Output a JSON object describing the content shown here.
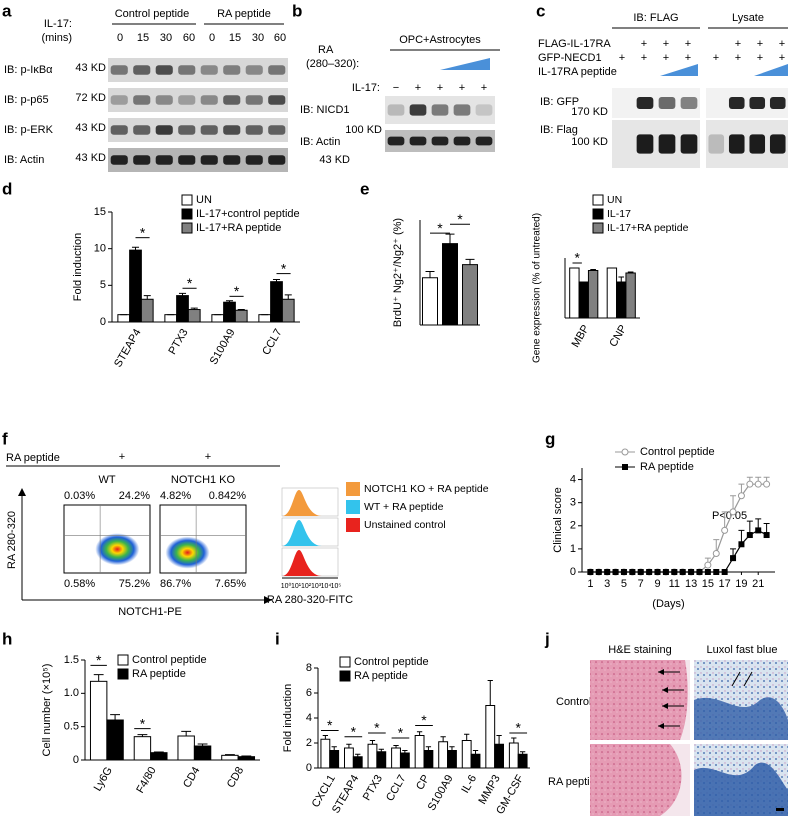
{
  "panel_a": {
    "label": "a",
    "il17": "IL-17:",
    "mins": "(mins)",
    "groups": [
      "Control peptide",
      "RA peptide"
    ],
    "times": [
      "0",
      "15",
      "30",
      "60",
      "0",
      "15",
      "30",
      "60"
    ],
    "rows": [
      {
        "name": "IB: p-IκBα",
        "size": "43 KD"
      },
      {
        "name": "IB: p-p65",
        "size": "72 KD"
      },
      {
        "name": "IB: p-ERK",
        "size": "43 KD"
      },
      {
        "name": "IB: Actin",
        "size": "43 KD"
      }
    ]
  },
  "panel_b": {
    "label": "b",
    "ra": "RA",
    "ra_range": "(280–320):",
    "group": "OPC+Astrocytes",
    "il17": "IL-17:",
    "il17_signs": [
      "−",
      "+",
      "+",
      "+",
      "+"
    ],
    "rows": [
      {
        "name": "IB: NICD1",
        "size": "100 KD"
      },
      {
        "name": "IB: Actin",
        "size": "43 KD"
      }
    ]
  },
  "panel_c": {
    "label": "c",
    "ip": "IB: FLAG",
    "lysate": "Lysate",
    "conditions": [
      {
        "name": "FLAG-IL-17RA",
        "left": [
          "+",
          "+",
          "+"
        ],
        "right": [
          "+",
          "+",
          "+"
        ]
      },
      {
        "name": "GFP-NECD1",
        "left": [
          "+",
          "+",
          "+",
          "+"
        ],
        "right": [
          "+",
          "+",
          "+",
          "+"
        ]
      },
      {
        "name": "IL-17RA peptide"
      }
    ],
    "rows": [
      {
        "name": "IB: GFP",
        "size": "170 KD"
      },
      {
        "name": "IB: Flag",
        "size": "100 KD"
      }
    ]
  },
  "panel_d": {
    "label": "d",
    "chart_data": {
      "type": "bar",
      "y_label": "Fold induction",
      "categories": [
        "STEAP4",
        "PTX3",
        "S100A9",
        "CCL7"
      ],
      "series": [
        {
          "name": "UN",
          "color": "#ffffff",
          "values": [
            1,
            1,
            1,
            1
          ],
          "errors": [
            0,
            0,
            0,
            0
          ]
        },
        {
          "name": "IL-17+control peptide",
          "color": "#000000",
          "values": [
            9.8,
            3.6,
            2.7,
            5.5
          ],
          "errors": [
            0.4,
            0.3,
            0.2,
            0.3
          ]
        },
        {
          "name": "IL-17+RA peptide",
          "color": "#808080",
          "values": [
            3.1,
            1.7,
            1.6,
            3.1
          ],
          "errors": [
            0.5,
            0.2,
            0.1,
            0.6
          ]
        }
      ],
      "ylim": [
        0,
        15
      ],
      "yticks": [
        0,
        5,
        10,
        15
      ],
      "annotations": [
        "*",
        "*",
        "*",
        "*"
      ]
    }
  },
  "panel_e": {
    "label": "e",
    "charts": [
      {
        "type": "bar",
        "y_label": "BrdU⁺ Ng2⁺/Ng2⁺ (%)",
        "values": [
          9,
          15.5,
          11.5
        ],
        "errors": [
          1.2,
          1.8,
          1.0
        ],
        "colors": [
          "#ffffff",
          "#000000",
          "#808080"
        ],
        "ylim": [
          0,
          20
        ],
        "annotations": [
          "*",
          "*"
        ]
      },
      {
        "type": "bar",
        "y_label": "Gene expression (% of untreated)",
        "categories": [
          "MBP",
          "CNP"
        ],
        "series": [
          {
            "name": "UN",
            "color": "#ffffff",
            "values": [
              100,
              100
            ],
            "errors": [
              0,
              0
            ]
          },
          {
            "name": "IL-17",
            "color": "#000000",
            "values": [
              72,
              72
            ],
            "errors": [
              0,
              10
            ]
          },
          {
            "name": "IL-17+RA peptide",
            "color": "#808080",
            "values": [
              95,
              90
            ],
            "errors": [
              2,
              2
            ]
          }
        ],
        "ylim": [
          0,
          120
        ],
        "annotations": [
          "*"
        ]
      }
    ]
  },
  "panel_f": {
    "label": "f",
    "ra_peptide": "RA peptide",
    "signs": [
      "+",
      "+"
    ],
    "plots": [
      {
        "name": "WT",
        "quadrants": [
          "0.03%",
          "24.2%",
          "0.58%",
          "75.2%"
        ]
      },
      {
        "name": "NOTCH1 KO",
        "quadrants": [
          "4.82%",
          "0.842%",
          "86.7%",
          "7.65%"
        ]
      }
    ],
    "y_axis": "RA 280-320",
    "x_axis": "NOTCH1-PE",
    "histogram": {
      "x_label": "RA 280-320-FITC",
      "x_ticks": [
        "10⁰",
        "10¹",
        "10²",
        "10³",
        "10⁴",
        "10⁵"
      ],
      "series": [
        {
          "name": "NOTCH1 KO + RA peptide",
          "color": "#f39a3c"
        },
        {
          "name": "WT + RA peptide",
          "color": "#33c3ec"
        },
        {
          "name": "Unstained control",
          "color": "#e8231e"
        }
      ]
    }
  },
  "panel_g": {
    "label": "g",
    "chart_data": {
      "type": "line",
      "y_label": "Clinical score",
      "x_label": "(Days)",
      "annotation": "P<0.05",
      "series": [
        {
          "name": "Control peptide",
          "color": "#999999",
          "marker": "circle",
          "x": [
            1,
            2,
            3,
            4,
            5,
            6,
            7,
            8,
            9,
            10,
            11,
            12,
            13,
            14,
            15,
            16,
            17,
            18,
            19,
            20,
            21,
            22
          ],
          "values": [
            0,
            0,
            0,
            0,
            0,
            0,
            0,
            0,
            0,
            0,
            0,
            0,
            0,
            0,
            0.3,
            0.8,
            1.8,
            2.6,
            3.3,
            3.8,
            3.8,
            3.8
          ],
          "errors": [
            0,
            0,
            0,
            0,
            0,
            0,
            0,
            0,
            0,
            0,
            0,
            0,
            0,
            0,
            0.3,
            0.6,
            0.8,
            0.7,
            0.5,
            0.3,
            0.3,
            0.3
          ]
        },
        {
          "name": "RA peptide",
          "color": "#000000",
          "marker": "square",
          "x": [
            1,
            2,
            3,
            4,
            5,
            6,
            7,
            8,
            9,
            10,
            11,
            12,
            13,
            14,
            15,
            16,
            17,
            18,
            19,
            20,
            21,
            22
          ],
          "values": [
            0,
            0,
            0,
            0,
            0,
            0,
            0,
            0,
            0,
            0,
            0,
            0,
            0,
            0,
            0,
            0,
            0,
            0.6,
            1.2,
            1.6,
            1.8,
            1.6
          ],
          "errors": [
            0,
            0,
            0,
            0,
            0,
            0,
            0,
            0,
            0,
            0,
            0,
            0,
            0,
            0,
            0,
            0,
            0,
            0.4,
            0.6,
            0.6,
            0.5,
            0.5
          ]
        }
      ],
      "xlim": [
        0,
        23
      ],
      "xticks": [
        1,
        3,
        5,
        7,
        9,
        11,
        13,
        15,
        17,
        19,
        21
      ],
      "ylim": [
        0,
        4.5
      ],
      "yticks": [
        0,
        1,
        2,
        3,
        4
      ]
    }
  },
  "panel_h": {
    "label": "h",
    "chart_data": {
      "type": "bar",
      "y_label": "Cell number (×10⁵)",
      "categories": [
        "Ly6G",
        "F4/80",
        "CD4",
        "CD8"
      ],
      "series": [
        {
          "name": "Control peptide",
          "color": "#ffffff",
          "values": [
            1.18,
            0.35,
            0.36,
            0.07
          ],
          "errors": [
            0.1,
            0.03,
            0.07,
            0.01
          ]
        },
        {
          "name": "RA peptide",
          "color": "#000000",
          "values": [
            0.6,
            0.11,
            0.21,
            0.05
          ],
          "errors": [
            0.08,
            0.01,
            0.03,
            0.01
          ]
        }
      ],
      "ylim": [
        0,
        1.5
      ],
      "yticks": [
        0,
        0.5,
        {
          "value": 1,
          "label": "1.0"
        },
        1.5
      ],
      "annotations": [
        "*",
        "*"
      ]
    }
  },
  "panel_i": {
    "label": "i",
    "chart_data": {
      "type": "bar",
      "y_label": "Fold induction",
      "categories": [
        "CXCL1",
        "STEAP4",
        "PTX3",
        "CCL7",
        "CP",
        "S100A9",
        "IL-6",
        "MMP3",
        "GM-CSF"
      ],
      "series": [
        {
          "name": "Control peptide",
          "color": "#ffffff",
          "values": [
            2.3,
            1.6,
            1.9,
            1.6,
            2.6,
            2.1,
            2.2,
            5.0,
            2.0
          ],
          "errors": [
            0.3,
            0.3,
            0.3,
            0.2,
            0.3,
            0.4,
            0.5,
            2.0,
            0.4
          ]
        },
        {
          "name": "RA peptide",
          "color": "#000000",
          "values": [
            1.4,
            0.9,
            1.3,
            1.2,
            1.4,
            1.4,
            1.1,
            1.9,
            1.1
          ],
          "errors": [
            0.3,
            0.2,
            0.2,
            0.2,
            0.3,
            0.3,
            0.3,
            0.7,
            0.2
          ]
        }
      ],
      "ylim": [
        0,
        8
      ],
      "yticks": [
        0,
        2,
        4,
        6,
        8
      ],
      "annotations": [
        "*",
        "*",
        "*",
        "*",
        "*",
        "*"
      ]
    }
  },
  "panel_j": {
    "label": "j",
    "columns": [
      "H&E staining",
      "Luxol fast blue"
    ],
    "rows": [
      "Control",
      "RA peptide"
    ]
  }
}
